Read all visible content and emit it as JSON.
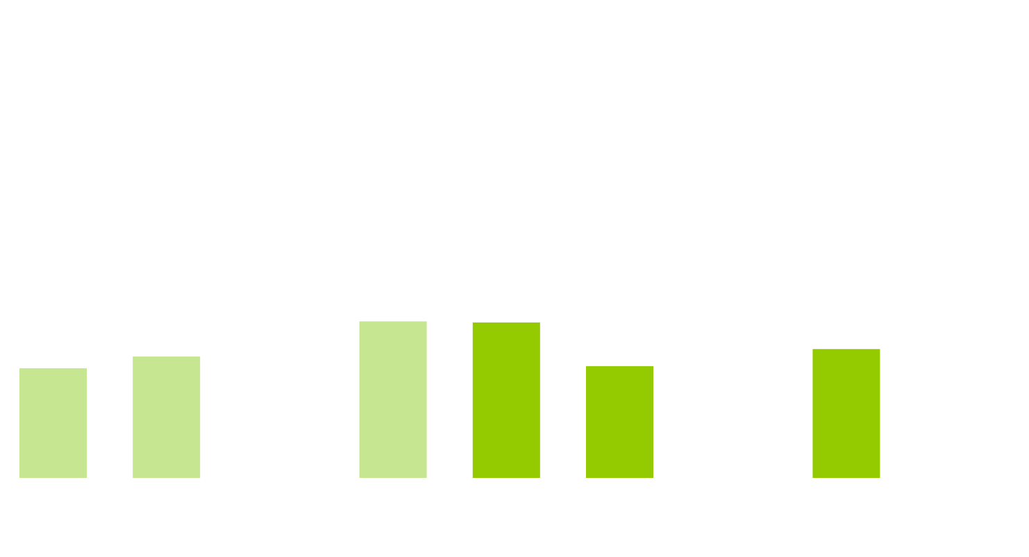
{
  "chart_data": {
    "type": "bar",
    "categories": [
      "",
      "",
      "",
      "",
      "",
      "",
      "",
      "",
      ""
    ],
    "series": [
      {
        "values": [
          103,
          114,
          null,
          147,
          null,
          null,
          null,
          null,
          null
        ],
        "color": "#c6e691"
      },
      {
        "values": [
          null,
          null,
          null,
          null,
          146,
          105,
          null,
          121,
          null
        ],
        "color": "#93cb00"
      }
    ],
    "ylim": [
      0,
      228
    ],
    "grid": false,
    "legend": "none"
  }
}
